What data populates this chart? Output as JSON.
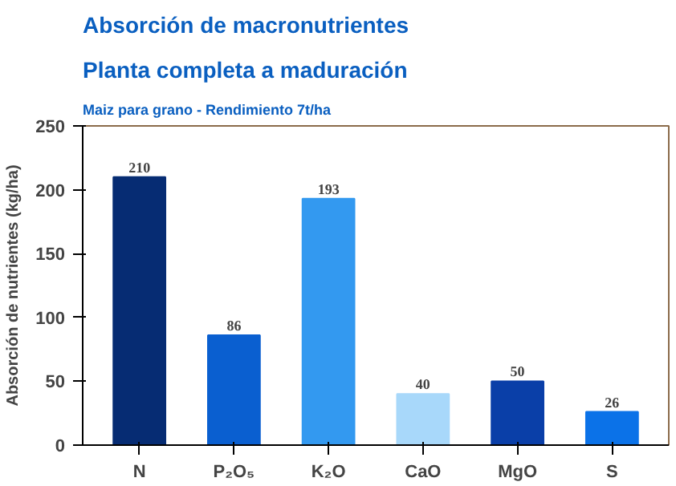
{
  "chart_data": {
    "type": "bar",
    "title": "Absorción de macronutrientes",
    "subtitle": "Planta completa a maduración",
    "annotations": [
      "Maiz para grano - Rendimiento 7t/ha"
    ],
    "ylabel": "Absorción de nutrientes (kg/ha)",
    "categories": [
      "N",
      "P₂O₅",
      "K₂O",
      "CaO",
      "MgO",
      "S"
    ],
    "values": [
      210,
      86,
      193,
      40,
      50,
      26
    ],
    "colors": [
      "#062c73",
      "#0a5fd0",
      "#3399f0",
      "#a8d8fa",
      "#0a3fa8",
      "#0b72e8"
    ],
    "ylim": [
      0,
      250
    ],
    "yticks": [
      0,
      50,
      100,
      150,
      200,
      250
    ],
    "data_labels": true
  }
}
